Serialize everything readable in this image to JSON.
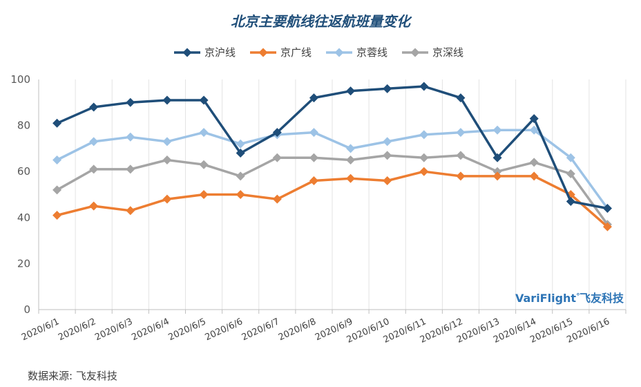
{
  "chart_data": {
    "type": "line",
    "title": "北京主要航线往返航班量变化",
    "categories": [
      "2020/6/1",
      "2020/6/2",
      "2020/6/3",
      "2020/6/4",
      "2020/6/5",
      "2020/6/6",
      "2020/6/7",
      "2020/6/8",
      "2020/6/9",
      "2020/6/10",
      "2020/6/11",
      "2020/6/12",
      "2020/6/13",
      "2020/6/14",
      "2020/6/15",
      "2020/6/16"
    ],
    "ylim": [
      0,
      100
    ],
    "yticks": [
      "0",
      "20",
      "40",
      "60",
      "80",
      "100"
    ],
    "grid": "vertical",
    "legend_position": "top",
    "series": [
      {
        "name": "京沪线",
        "color": "#1f4e79",
        "values": [
          81,
          88,
          90,
          91,
          91,
          68,
          77,
          92,
          95,
          96,
          97,
          92,
          66,
          83,
          47,
          44
        ]
      },
      {
        "name": "京广线",
        "color": "#ed7d31",
        "values": [
          41,
          45,
          43,
          48,
          50,
          50,
          48,
          56,
          57,
          56,
          60,
          58,
          58,
          58,
          50,
          36
        ]
      },
      {
        "name": "京蓉线",
        "color": "#9dc3e6",
        "values": [
          65,
          73,
          75,
          73,
          77,
          72,
          76,
          77,
          70,
          73,
          76,
          77,
          78,
          78,
          66,
          44
        ]
      },
      {
        "name": "京深线",
        "color": "#a5a5a5",
        "values": [
          52,
          61,
          61,
          65,
          63,
          58,
          66,
          66,
          65,
          67,
          66,
          67,
          60,
          64,
          59,
          37
        ]
      }
    ]
  },
  "watermark": {
    "brand": "VariFlight",
    "mark": "°",
    "cn": "飞友科技"
  },
  "source": "数据来源: 飞友科技"
}
